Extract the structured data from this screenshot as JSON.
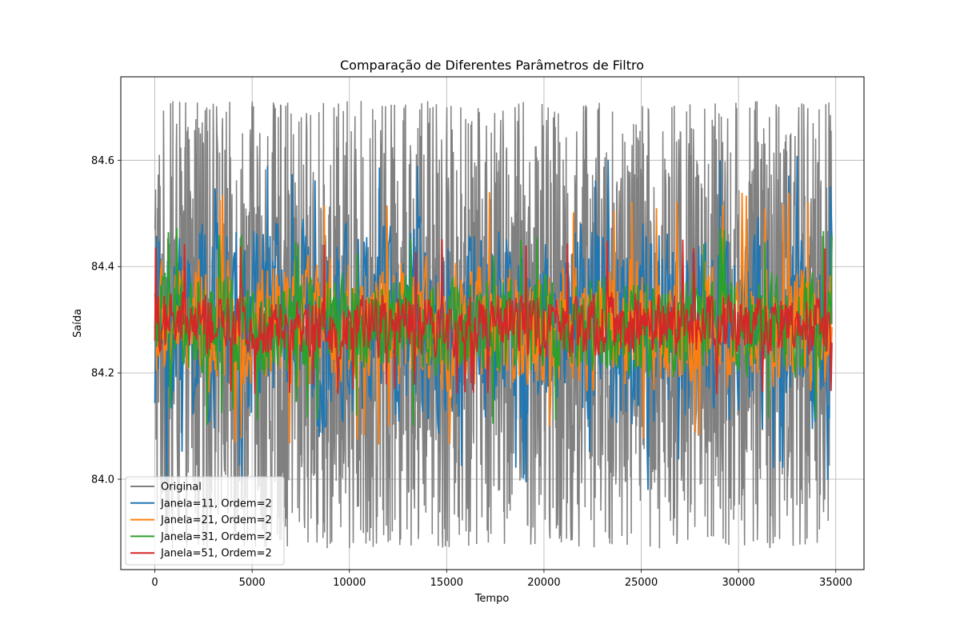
{
  "chart_data": {
    "type": "line",
    "title": "Comparação de Diferentes Parâmetros de Filtro",
    "xlabel": "Tempo",
    "ylabel": "Saída",
    "xlim": [
      -1750,
      36450
    ],
    "ylim": [
      83.83,
      84.757
    ],
    "xticks": [
      0,
      5000,
      10000,
      15000,
      20000,
      25000,
      30000,
      35000
    ],
    "xtick_labels": [
      "0",
      "5000",
      "10000",
      "15000",
      "20000",
      "25000",
      "30000",
      "35000"
    ],
    "yticks": [
      84.0,
      84.2,
      84.4,
      84.6
    ],
    "ytick_labels": [
      "84.0",
      "84.2",
      "84.4",
      "84.6"
    ],
    "grid": true,
    "legend_position": "lower-left",
    "x_range": [
      0,
      34800
    ],
    "series": [
      {
        "name": "Original",
        "color": "#808080",
        "center": 84.29,
        "amplitude": 0.42,
        "min": 83.87,
        "max": 84.712,
        "kind": "noise"
      },
      {
        "name": "Janela=11, Ordem=2",
        "color": "#1f77b4",
        "center": 84.29,
        "amplitude": 0.18,
        "min": 83.96,
        "max": 84.66,
        "kind": "smoothed"
      },
      {
        "name": "Janela=21, Ordem=2",
        "color": "#ff7f0e",
        "center": 84.29,
        "amplitude": 0.11,
        "min": 84.03,
        "max": 84.58,
        "kind": "smoothed"
      },
      {
        "name": "Janela=31, Ordem=2",
        "color": "#2ca02c",
        "center": 84.29,
        "amplitude": 0.085,
        "min": 84.07,
        "max": 84.5,
        "kind": "smoothed"
      },
      {
        "name": "Janela=51, Ordem=2",
        "color": "#d62728",
        "center": 84.29,
        "amplitude": 0.055,
        "min": 84.14,
        "max": 84.48,
        "kind": "smoothed"
      }
    ]
  }
}
